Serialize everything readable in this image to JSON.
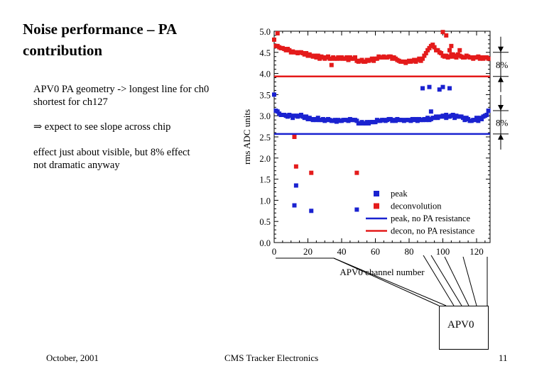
{
  "slide": {
    "title_line1": "Noise performance – PA",
    "title_line2": "contribution",
    "bullet1_line1": "APV0 PA geometry -> longest line for ch0",
    "bullet1_line2": "shortest for ch127",
    "bullet2_arrow": "⇒",
    "bullet2_text": "expect to see slope across chip",
    "bullet3_line1": "effect just about visible, but 8% effect",
    "bullet3_line2": "not dramatic anyway",
    "footer_date": "October, 2001",
    "footer_center": "CMS Tracker Electronics",
    "page_number": "11",
    "chip_label": "APV0"
  },
  "chart_data": {
    "type": "scatter",
    "title": "",
    "xlabel": "APV0 channel number",
    "ylabel": "rms ADC units",
    "xlim": [
      0,
      128
    ],
    "ylim": [
      0.0,
      5.0
    ],
    "x_ticks": [
      0,
      20,
      40,
      60,
      80,
      100,
      120
    ],
    "y_ticks": [
      0.0,
      0.5,
      1.0,
      1.5,
      2.0,
      2.5,
      3.0,
      3.5,
      4.0,
      4.5,
      5.0
    ],
    "y_tick_labels": [
      "0.0",
      "0.5",
      "1.0",
      "1.5",
      "2.0",
      "2.5",
      "3.0",
      "3.5",
      "4.0",
      "4.5",
      "5.0"
    ],
    "colors": {
      "peak": "#1a22d0",
      "deconvolution": "#e41b1b"
    },
    "series": [
      {
        "name": "peak",
        "marker": "square",
        "color": "#1a22d0",
        "x": [
          0,
          1,
          2,
          3,
          4,
          5,
          6,
          7,
          8,
          9,
          10,
          11,
          12,
          13,
          14,
          15,
          16,
          17,
          18,
          19,
          20,
          21,
          22,
          23,
          24,
          25,
          26,
          27,
          28,
          29,
          30,
          31,
          32,
          33,
          34,
          35,
          36,
          37,
          38,
          39,
          40,
          41,
          42,
          43,
          44,
          45,
          46,
          47,
          48,
          49,
          50,
          51,
          52,
          53,
          54,
          55,
          56,
          57,
          58,
          59,
          60,
          61,
          62,
          63,
          64,
          65,
          66,
          67,
          68,
          69,
          70,
          71,
          72,
          73,
          74,
          75,
          76,
          77,
          78,
          79,
          80,
          81,
          82,
          83,
          84,
          85,
          86,
          87,
          88,
          89,
          90,
          91,
          92,
          93,
          94,
          95,
          96,
          97,
          98,
          99,
          100,
          101,
          102,
          103,
          104,
          105,
          106,
          107,
          108,
          109,
          110,
          111,
          112,
          113,
          114,
          115,
          116,
          117,
          118,
          119,
          120,
          121,
          122,
          123,
          124,
          125,
          126,
          127,
          12,
          13,
          22,
          49,
          88,
          92,
          98,
          100,
          104,
          93,
          102
        ],
        "y": [
          3.5,
          3.12,
          3.1,
          3.05,
          3.02,
          3.02,
          3.02,
          3.0,
          2.98,
          3.02,
          3.0,
          2.95,
          3.0,
          3.0,
          2.98,
          3.0,
          3.02,
          2.98,
          2.95,
          2.98,
          2.92,
          2.95,
          2.92,
          2.9,
          2.92,
          2.9,
          2.95,
          2.9,
          2.9,
          2.92,
          2.88,
          2.9,
          2.92,
          2.9,
          2.88,
          2.88,
          2.9,
          2.86,
          2.9,
          2.88,
          2.88,
          2.9,
          2.9,
          2.9,
          2.88,
          2.92,
          2.9,
          2.9,
          2.9,
          2.88,
          2.82,
          2.82,
          2.85,
          2.82,
          2.82,
          2.85,
          2.82,
          2.85,
          2.85,
          2.85,
          2.85,
          2.9,
          2.88,
          2.88,
          2.9,
          2.9,
          2.88,
          2.9,
          2.92,
          2.92,
          2.88,
          2.9,
          2.88,
          2.92,
          2.9,
          2.9,
          2.9,
          2.88,
          2.9,
          2.9,
          2.9,
          2.88,
          2.92,
          2.9,
          2.92,
          2.88,
          2.92,
          2.9,
          2.9,
          2.92,
          2.9,
          2.95,
          2.9,
          2.92,
          2.95,
          2.95,
          2.98,
          2.95,
          2.98,
          2.98,
          3.0,
          2.98,
          2.95,
          2.98,
          2.98,
          3.0,
          3.02,
          2.95,
          3.0,
          2.98,
          2.98,
          2.98,
          2.95,
          2.9,
          2.95,
          2.92,
          2.88,
          2.88,
          2.9,
          2.9,
          2.95,
          2.88,
          2.95,
          2.92,
          2.98,
          3.0,
          3.02,
          3.12,
          0.88,
          1.35,
          0.75,
          0.78,
          3.65,
          3.68,
          3.62,
          3.68,
          3.65,
          3.1,
          3.02
        ]
      },
      {
        "name": "deconvolution",
        "marker": "square",
        "color": "#e41b1b",
        "x": [
          0,
          1,
          2,
          3,
          4,
          5,
          6,
          7,
          8,
          9,
          10,
          11,
          12,
          13,
          14,
          15,
          16,
          17,
          18,
          19,
          20,
          21,
          22,
          23,
          24,
          25,
          26,
          27,
          28,
          29,
          30,
          31,
          32,
          33,
          34,
          35,
          36,
          37,
          38,
          39,
          40,
          41,
          42,
          43,
          44,
          45,
          46,
          47,
          48,
          49,
          50,
          51,
          52,
          53,
          54,
          55,
          56,
          57,
          58,
          59,
          60,
          61,
          62,
          63,
          64,
          65,
          66,
          67,
          68,
          69,
          70,
          71,
          72,
          73,
          74,
          75,
          76,
          77,
          78,
          79,
          80,
          81,
          82,
          83,
          84,
          85,
          86,
          87,
          88,
          89,
          90,
          91,
          92,
          93,
          94,
          95,
          96,
          97,
          98,
          99,
          100,
          101,
          102,
          103,
          104,
          105,
          106,
          107,
          108,
          109,
          110,
          111,
          112,
          113,
          114,
          115,
          116,
          117,
          118,
          119,
          120,
          121,
          122,
          123,
          124,
          125,
          126,
          127,
          2,
          12,
          13,
          22,
          34,
          49,
          100,
          102,
          104,
          105,
          106,
          110
        ],
        "y": [
          4.8,
          4.65,
          4.65,
          4.62,
          4.6,
          4.6,
          4.58,
          4.55,
          4.58,
          4.55,
          4.5,
          4.52,
          4.5,
          4.5,
          4.48,
          4.5,
          4.5,
          4.48,
          4.45,
          4.48,
          4.42,
          4.45,
          4.42,
          4.4,
          4.42,
          4.38,
          4.42,
          4.35,
          4.4,
          4.38,
          4.35,
          4.38,
          4.4,
          4.35,
          4.35,
          4.38,
          4.35,
          4.35,
          4.38,
          4.35,
          4.38,
          4.35,
          4.35,
          4.38,
          4.32,
          4.38,
          4.35,
          4.35,
          4.38,
          4.3,
          4.28,
          4.3,
          4.32,
          4.28,
          4.28,
          4.32,
          4.3,
          4.32,
          4.35,
          4.3,
          4.35,
          4.35,
          4.4,
          4.38,
          4.38,
          4.4,
          4.38,
          4.38,
          4.4,
          4.4,
          4.35,
          4.38,
          4.35,
          4.32,
          4.3,
          4.28,
          4.28,
          4.28,
          4.25,
          4.28,
          4.3,
          4.28,
          4.3,
          4.32,
          4.28,
          4.32,
          4.35,
          4.3,
          4.35,
          4.42,
          4.48,
          4.55,
          4.6,
          4.65,
          4.68,
          4.62,
          4.55,
          4.55,
          4.5,
          4.48,
          4.42,
          4.4,
          4.42,
          4.38,
          4.4,
          4.45,
          4.4,
          4.42,
          4.38,
          4.45,
          4.42,
          4.4,
          4.38,
          4.38,
          4.42,
          4.4,
          4.38,
          4.38,
          4.35,
          4.38,
          4.38,
          4.4,
          4.35,
          4.38,
          4.35,
          4.38,
          4.38,
          4.35,
          4.95,
          2.5,
          1.8,
          1.65,
          4.2,
          1.65,
          4.98,
          4.9,
          4.55,
          4.65,
          4.45,
          4.55
        ]
      }
    ],
    "reference_lines": [
      {
        "name": "peak, no PA resistance",
        "y": 2.57,
        "color": "#1a22d0"
      },
      {
        "name": "decon, no PA resistance",
        "y": 3.93,
        "color": "#e41b1b"
      }
    ],
    "legend": [
      {
        "label": "peak",
        "kind": "square",
        "color": "#1a22d0"
      },
      {
        "label": "deconvolution",
        "kind": "square",
        "color": "#e41b1b"
      },
      {
        "label": "peak, no PA resistance",
        "kind": "line",
        "color": "#1a22d0"
      },
      {
        "label": "decon, no PA resistance",
        "kind": "line",
        "color": "#e41b1b"
      }
    ],
    "legend_position": "bottom-right",
    "annotations": [
      {
        "label": "8%",
        "from": 3.93,
        "to": 4.5
      },
      {
        "label": "8%",
        "from": 2.57,
        "to": 3.12
      }
    ]
  }
}
